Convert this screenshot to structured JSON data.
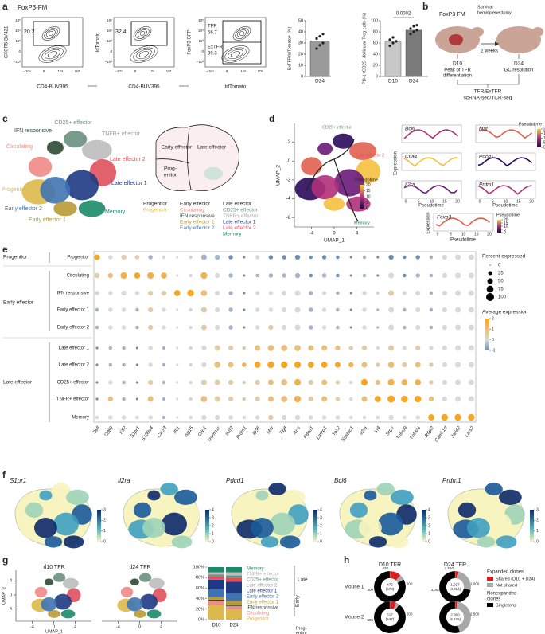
{
  "a": {
    "label": "a",
    "title": "FoxP3-FM",
    "flow": [
      {
        "y_label": "CXCR5-BV421",
        "x_label": "CD4-BUV395",
        "gates": [
          "20.2"
        ]
      },
      {
        "y_label": "tdTomato",
        "x_label": "CD4-BUV395",
        "gates": [
          "32.4"
        ]
      },
      {
        "y_label": "FoxP3 GFP",
        "x_label": "tdTomato",
        "gates": [
          "56.7",
          "39.3"
        ],
        "gate_names": [
          "TFR",
          "ExTFR"
        ]
      }
    ],
    "flow_yticks": [
      "10⁵",
      "10⁴",
      "10³",
      "0",
      "−10³"
    ],
    "flow_xticks": [
      "−10⁴",
      "0",
      "10⁴",
      "10⁵"
    ],
    "bar1": {
      "type": "bar",
      "y_label": "ExTFR/tdTomato+ (%)",
      "categories": [
        "D24"
      ],
      "values": [
        32
      ],
      "points": [
        [
          25,
          28,
          30,
          34,
          36,
          38
        ]
      ],
      "colors": [
        "#9a9a9a"
      ],
      "ylim": [
        0,
        50
      ],
      "yticks": [
        0,
        10,
        20,
        30,
        40,
        50
      ]
    },
    "bar2": {
      "type": "bar",
      "y_label": "PD-1+CD25−/follicular Treg cells (%)",
      "categories": [
        "D10",
        "D24"
      ],
      "values": [
        63,
        83
      ],
      "points": [
        [
          55,
          60,
          63,
          66,
          70
        ],
        [
          76,
          80,
          83,
          86,
          90,
          92
        ]
      ],
      "colors": [
        "#c8c8c8",
        "#7a7a7a"
      ],
      "ylim": [
        0,
        100
      ],
      "yticks": [
        0,
        20,
        40,
        60,
        80,
        100
      ],
      "annotation": "0.0002"
    }
  },
  "b": {
    "label": "b",
    "title": "FoxP3-FM",
    "surgery": [
      "Survival",
      "hemisplenectomy"
    ],
    "interval": "2 weeks",
    "d10": "D10",
    "d10_note": [
      "Peak of TFR",
      "differentiation"
    ],
    "d24": "D24",
    "d24_note": "GC resolution",
    "cells": "TFR/ExTFR",
    "assay": "scRNA-seq/TCR-seq"
  },
  "clusters": [
    {
      "name": "Progenitor",
      "color": "#dcb94a"
    },
    {
      "name": "Circulating",
      "color": "#f08a86"
    },
    {
      "name": "IFN responsive",
      "color": "#2f4a33"
    },
    {
      "name": "Early effector 1",
      "color": "#b99a36"
    },
    {
      "name": "Early effector 2",
      "color": "#3f74b0"
    },
    {
      "name": "CD25+ effector",
      "color": "#6a9080"
    },
    {
      "name": "TNFR+ effector",
      "color": "#bdbdbd"
    },
    {
      "name": "Late effector 1",
      "color": "#1e3a82"
    },
    {
      "name": "Late effector 2",
      "color": "#e0505c"
    },
    {
      "name": "Memory",
      "color": "#1b8a68"
    }
  ],
  "c": {
    "label": "c",
    "schematic": {
      "early": "Early effector",
      "late": "Late effector",
      "prog": [
        "Prog-",
        "enitor"
      ]
    },
    "legend_headers": [
      "Progenitor",
      "Early effector",
      "Late effector"
    ]
  },
  "d": {
    "label": "d",
    "x_label": "UMAP_1",
    "y_label": "UMAP_2",
    "xlim": [
      -7,
      7
    ],
    "xticks": [
      -4,
      0,
      4
    ],
    "ylim": [
      -7,
      4
    ],
    "yticks": [
      2,
      0,
      -2,
      -4,
      -6
    ],
    "annotations": [
      "CD25+ effector",
      "Late effector 2",
      "Memory"
    ],
    "pseudotime": {
      "label": "Pseudotime",
      "clim": [
        0,
        20
      ],
      "ticks": [
        0,
        5,
        10,
        15,
        20
      ]
    },
    "genes": [
      "Bcl6",
      "Maf",
      "Ctla4",
      "Pdcd1",
      "Il2ra",
      "Prdm1",
      "Foxp3"
    ],
    "mini_y_label": "Expression",
    "mini_x_label": "Pseudotime",
    "mini_xticks": [
      0,
      5,
      10,
      15,
      20
    ]
  },
  "e": {
    "label": "e",
    "groups": [
      "Progenitor",
      "Early effector",
      "Late effector"
    ],
    "rows": [
      "Progenitor",
      "Circulating",
      "IFN responsive",
      "Early effector 1",
      "Early effector 2",
      "Late effector 1",
      "Late effector 2",
      "CD25+ effector",
      "TNFR+ effector",
      "Memory"
    ],
    "genes": [
      "Sell",
      "Cd69",
      "Klf2",
      "S1pr1",
      "S100a4",
      "Cxcr3",
      "Ifit1",
      "Isg15",
      "Crip1",
      "Izumo1r",
      "Ikzf2",
      "Prdm1",
      "Bcl6",
      "Maf",
      "Tigit",
      "Icos",
      "Pdcd1",
      "Lamp1",
      "Tox2",
      "Sostdc1",
      "Il2ra",
      "Irf4",
      "Srgn",
      "Tnfrsf9",
      "Tnfrsf4",
      "Rilpl2",
      "Camk1d",
      "Jarid2",
      "Lars2"
    ],
    "percent": [
      [
        50,
        30,
        40,
        30,
        30,
        20,
        10,
        20,
        50,
        40,
        30,
        10,
        30,
        30,
        30,
        40,
        20,
        30,
        20,
        10,
        20,
        10,
        40,
        20,
        30,
        20,
        40,
        50,
        50
      ],
      [
        40,
        40,
        70,
        60,
        70,
        60,
        10,
        20,
        70,
        40,
        30,
        10,
        20,
        30,
        30,
        40,
        20,
        30,
        20,
        10,
        20,
        10,
        50,
        20,
        30,
        20,
        40,
        50,
        50
      ],
      [
        30,
        30,
        40,
        30,
        40,
        40,
        60,
        70,
        60,
        40,
        30,
        10,
        30,
        30,
        40,
        50,
        30,
        30,
        20,
        10,
        30,
        20,
        50,
        30,
        40,
        20,
        40,
        50,
        50
      ],
      [
        20,
        30,
        30,
        20,
        40,
        30,
        10,
        20,
        50,
        40,
        30,
        10,
        30,
        30,
        40,
        50,
        30,
        30,
        20,
        10,
        30,
        10,
        50,
        20,
        40,
        20,
        40,
        50,
        50
      ],
      [
        20,
        30,
        30,
        20,
        40,
        30,
        10,
        20,
        50,
        40,
        30,
        10,
        30,
        40,
        40,
        50,
        30,
        30,
        20,
        10,
        30,
        10,
        50,
        20,
        40,
        20,
        40,
        50,
        50
      ],
      [
        10,
        20,
        20,
        10,
        30,
        20,
        10,
        20,
        40,
        50,
        40,
        20,
        50,
        60,
        60,
        60,
        50,
        50,
        40,
        30,
        40,
        20,
        50,
        30,
        40,
        30,
        40,
        50,
        50
      ],
      [
        10,
        20,
        20,
        10,
        30,
        20,
        10,
        20,
        40,
        60,
        50,
        30,
        60,
        70,
        70,
        70,
        60,
        60,
        50,
        40,
        50,
        30,
        60,
        40,
        50,
        30,
        40,
        50,
        50
      ],
      [
        10,
        30,
        20,
        10,
        40,
        20,
        10,
        20,
        50,
        50,
        40,
        20,
        40,
        50,
        60,
        70,
        40,
        50,
        30,
        20,
        70,
        40,
        70,
        60,
        60,
        30,
        40,
        50,
        50
      ],
      [
        10,
        40,
        20,
        10,
        50,
        20,
        10,
        20,
        60,
        50,
        40,
        20,
        40,
        50,
        60,
        70,
        40,
        50,
        30,
        20,
        50,
        60,
        80,
        70,
        70,
        40,
        40,
        50,
        50
      ],
      [
        20,
        30,
        30,
        20,
        30,
        20,
        10,
        20,
        40,
        40,
        30,
        20,
        30,
        40,
        40,
        40,
        30,
        30,
        30,
        20,
        20,
        20,
        40,
        20,
        30,
        60,
        70,
        70,
        70
      ]
    ],
    "expression": [
      [
        2,
        0,
        0.5,
        0.5,
        -0.5,
        0,
        0,
        0,
        -0.5,
        -0.5,
        -1,
        -1,
        0,
        -1,
        -1,
        -1,
        -1,
        -1,
        -1,
        -1,
        -0.5,
        -1,
        -1,
        -1,
        -1,
        -0.5,
        0,
        0,
        0
      ],
      [
        0.5,
        1,
        1.5,
        2,
        1.5,
        1.5,
        0,
        0,
        1.5,
        0,
        -0.5,
        -1,
        -0.5,
        -0.5,
        -0.5,
        -0.5,
        -1,
        -0.5,
        -1,
        -1,
        -0.5,
        -1,
        0,
        -1,
        -0.5,
        -0.5,
        0,
        0,
        0
      ],
      [
        0,
        0,
        0,
        0,
        0.5,
        0.5,
        2,
        2,
        1,
        0,
        -0.5,
        -1,
        0,
        0,
        0,
        0,
        -0.5,
        0,
        -0.5,
        -1,
        0,
        0,
        0.5,
        0,
        0,
        -0.5,
        0,
        0,
        0
      ],
      [
        -0.5,
        0,
        0,
        -0.5,
        0.5,
        0,
        0,
        0,
        0.5,
        0,
        -0.5,
        -1,
        0,
        0,
        0,
        0,
        -0.5,
        0,
        -0.5,
        -1,
        0,
        -0.5,
        0,
        -0.5,
        0,
        -0.5,
        0,
        0,
        0
      ],
      [
        -0.5,
        0,
        0,
        -0.5,
        0.5,
        0,
        0,
        0,
        0.5,
        0,
        -0.5,
        -1,
        0,
        0.5,
        0,
        0,
        -0.5,
        0,
        -0.5,
        -1,
        0,
        -0.5,
        0,
        -0.5,
        0,
        -0.5,
        0,
        0,
        0
      ],
      [
        -1,
        -0.5,
        -0.5,
        -1,
        0,
        -0.5,
        0,
        0,
        0,
        0.5,
        0.5,
        0.5,
        1,
        1,
        1,
        1,
        1,
        1,
        1,
        0.5,
        0.5,
        0,
        0.5,
        0,
        0.5,
        0,
        0,
        0,
        0
      ],
      [
        -1,
        -0.5,
        -0.5,
        -1,
        0,
        -0.5,
        0,
        0,
        0,
        1,
        1,
        1.5,
        2,
        2,
        2,
        2,
        2,
        2,
        2,
        1.5,
        1,
        0.5,
        1,
        0.5,
        1,
        0.5,
        0,
        0,
        0
      ],
      [
        -1,
        0,
        -0.5,
        -1,
        0.5,
        -0.5,
        0,
        0,
        0.5,
        0.5,
        0.5,
        0.5,
        0.5,
        1,
        1,
        1.5,
        0.5,
        1,
        0.5,
        0,
        2,
        1,
        1.5,
        1.5,
        1.5,
        0.5,
        0,
        0,
        0
      ],
      [
        -1,
        1,
        -0.5,
        -1,
        1,
        -0.5,
        0,
        0,
        1,
        0.5,
        0.5,
        0.5,
        0.5,
        1,
        1,
        1.5,
        0.5,
        1,
        0.5,
        0,
        1,
        2,
        2,
        2,
        2,
        1,
        0,
        0,
        0
      ],
      [
        0,
        0,
        0,
        0,
        0,
        -0.5,
        0,
        0,
        0,
        0,
        0,
        0,
        0,
        0.5,
        0,
        0,
        0,
        0,
        0,
        0,
        0,
        0,
        0,
        0,
        0,
        2,
        2,
        2,
        2
      ]
    ],
    "size_legend": {
      "label": "Percent expressed",
      "ticks": [
        0,
        25,
        50,
        75,
        100
      ]
    },
    "color_legend": {
      "label": "Average expression",
      "clim": [
        -1,
        2
      ],
      "ticks": [
        2,
        1,
        0,
        -1
      ]
    }
  },
  "f": {
    "label": "f",
    "maps": [
      {
        "gene": "S1pr1",
        "clim": [
          0,
          3
        ],
        "ticks": [
          0,
          1,
          2,
          3
        ]
      },
      {
        "gene": "Il2ra",
        "clim": [
          0,
          4
        ],
        "ticks": [
          0,
          1,
          2,
          3,
          4
        ]
      },
      {
        "gene": "Pdcd1",
        "clim": [
          0,
          4
        ],
        "ticks": [
          0,
          1,
          2,
          3,
          4
        ]
      },
      {
        "gene": "Bcl6",
        "clim": [
          0,
          4
        ],
        "ticks": [
          0,
          1,
          2,
          3,
          4
        ]
      },
      {
        "gene": "Prdm1",
        "clim": [
          0,
          3
        ],
        "ticks": [
          0,
          1,
          2,
          3
        ]
      }
    ]
  },
  "g": {
    "label": "g",
    "umaps": [
      "d10 TFR",
      "d24 TFR"
    ],
    "x_label": "UMAP_1",
    "y_label": "UMAP_2",
    "xlim": [
      -7,
      7
    ],
    "xticks": [
      -4,
      0,
      4
    ],
    "ylim": [
      -7,
      7
    ],
    "yticks": [
      4,
      0,
      -4
    ],
    "bar": {
      "type": "stacked_bar",
      "categories": [
        "D10",
        "D24"
      ],
      "ylim": [
        0,
        100
      ],
      "yticks": [
        {
          "value": 0,
          "label": "0%"
        },
        {
          "value": 20,
          "label": "20%"
        },
        {
          "value": 40,
          "label": "40%"
        },
        {
          "value": 60,
          "label": "60%"
        },
        {
          "value": 80,
          "label": "80%"
        },
        {
          "value": 100,
          "label": "100%"
        }
      ],
      "series": [
        {
          "name": "Progenitor",
          "color": "#dcb94a",
          "values": [
            28,
            20
          ]
        },
        {
          "name": "Circulating",
          "color": "#f08a86",
          "values": [
            8,
            6
          ]
        },
        {
          "name": "IFN responsive",
          "color": "#2f4a33",
          "values": [
            2,
            2
          ]
        },
        {
          "name": "Early effector 1",
          "color": "#b99a36",
          "values": [
            5,
            8
          ]
        },
        {
          "name": "Early effector 2",
          "color": "#3f74b0",
          "values": [
            15,
            14
          ]
        },
        {
          "name": "Late effector 1",
          "color": "#1e3a82",
          "values": [
            18,
            22
          ]
        },
        {
          "name": "Late effector 2",
          "color": "#e0505c",
          "values": [
            6,
            8
          ]
        },
        {
          "name": "CD25+ effector",
          "color": "#6a9080",
          "values": [
            4,
            4
          ]
        },
        {
          "name": "TNFR+ effector",
          "color": "#bdbdbd",
          "values": [
            4,
            6
          ]
        },
        {
          "name": "Memory",
          "color": "#1b8a68",
          "values": [
            10,
            10
          ]
        }
      ]
    },
    "groups": [
      "Late",
      "Early"
    ],
    "prog": [
      "Prog-",
      "enitor"
    ]
  },
  "h": {
    "label": "h",
    "columns": [
      "D10 TFR",
      "D24 TFR"
    ],
    "rows": [
      "Mouse 1",
      "Mouse 2"
    ],
    "legend": {
      "expanded": "Expanded clones",
      "shared": "Shared (D10 + D24)",
      "not_shared": "Not shared",
      "nonexpanded": [
        "Nonexpanded",
        "clones"
      ],
      "singletons": "Singletons"
    },
    "colors": {
      "shared": "#d42020",
      "not_shared": "#a8a8a8",
      "singletons": "#000000"
    },
    "donuts": [
      {
        "center": [
          "472",
          "(578)"
        ],
        "top": "428",
        "labels": [
          "200",
          "300",
          "400"
        ],
        "shared": 12,
        "not_shared": 5,
        "singletons": 83
      },
      {
        "center": [
          "1,027",
          "(3,084)"
        ],
        "top": "1,510",
        "labels": [
          "1,000",
          "2,000",
          "3,000"
        ],
        "shared": 4,
        "not_shared": 24,
        "singletons": 72
      },
      {
        "center": [
          "517",
          "(547)"
        ],
        "top": "501",
        "labels": [
          "200",
          "400",
          "500"
        ],
        "shared": 7,
        "not_shared": 3,
        "singletons": 90
      },
      {
        "center": [
          "2,980",
          "(5,105)"
        ],
        "top": "4,586",
        "labels": [
          "2,500",
          "5,000"
        ],
        "shared": 3,
        "not_shared": 42,
        "singletons": 55
      }
    ]
  }
}
